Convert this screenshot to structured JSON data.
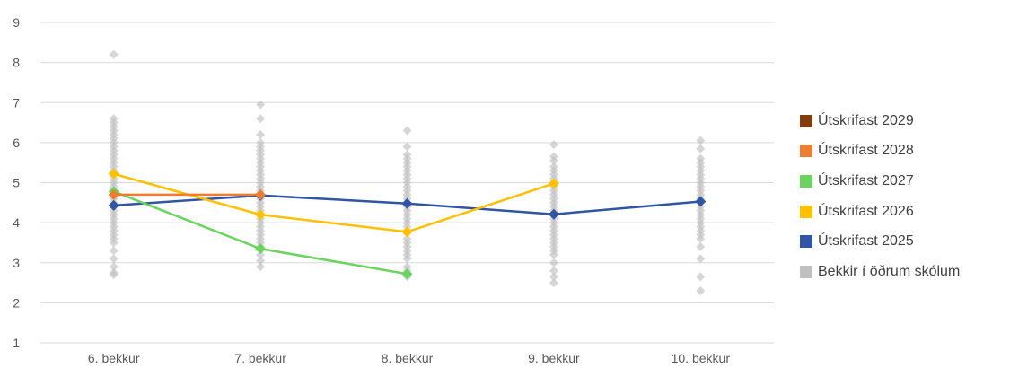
{
  "chart_data": {
    "type": "line",
    "categories": [
      "6. bekkur",
      "7. bekkur",
      "8. bekkur",
      "9. bekkur",
      "10. bekkur"
    ],
    "ylim": [
      1,
      9
    ],
    "yticks": [
      "1",
      "2",
      "3",
      "4",
      "5",
      "6",
      "7",
      "8",
      "9"
    ],
    "grid": true,
    "legend_position": "right",
    "series": [
      {
        "name": "Útskrifast 2029",
        "color": "#843c0c",
        "values": [
          null,
          null,
          null,
          null,
          null
        ]
      },
      {
        "name": "Útskrifast 2028",
        "color": "#ed7d31",
        "values": [
          4.7,
          4.7,
          null,
          null,
          null
        ]
      },
      {
        "name": "Útskrifast 2027",
        "color": "#6ad45f",
        "values": [
          4.78,
          3.35,
          2.72,
          null,
          null
        ]
      },
      {
        "name": "Útskrifast 2026",
        "color": "#ffc000",
        "values": [
          5.22,
          4.2,
          3.77,
          4.98,
          null
        ]
      },
      {
        "name": "Útskrifast 2025",
        "color": "#2f55a4",
        "values": [
          4.43,
          4.68,
          4.48,
          4.21,
          4.53
        ]
      }
    ],
    "background_series": {
      "name": "Bekkir í öðrum skólum",
      "color": "#c0c0c0",
      "points": [
        [
          0,
          8.2
        ],
        [
          0,
          6.6
        ],
        [
          0,
          6.5
        ],
        [
          0,
          6.4
        ],
        [
          0,
          6.3
        ],
        [
          0,
          6.2
        ],
        [
          0,
          6.1
        ],
        [
          0,
          6.0
        ],
        [
          0,
          5.9
        ],
        [
          0,
          5.8
        ],
        [
          0,
          5.7
        ],
        [
          0,
          5.6
        ],
        [
          0,
          5.5
        ],
        [
          0,
          5.4
        ],
        [
          0,
          5.3
        ],
        [
          0,
          5.2
        ],
        [
          0,
          5.1
        ],
        [
          0,
          5.0
        ],
        [
          0,
          4.9
        ],
        [
          0,
          4.8
        ],
        [
          0,
          4.6
        ],
        [
          0,
          4.5
        ],
        [
          0,
          4.4
        ],
        [
          0,
          4.3
        ],
        [
          0,
          4.2
        ],
        [
          0,
          4.1
        ],
        [
          0,
          4.0
        ],
        [
          0,
          3.9
        ],
        [
          0,
          3.8
        ],
        [
          0,
          3.7
        ],
        [
          0,
          3.6
        ],
        [
          0,
          3.5
        ],
        [
          0,
          3.3
        ],
        [
          0,
          3.1
        ],
        [
          0,
          2.9
        ],
        [
          0,
          2.75
        ],
        [
          0,
          2.7
        ],
        [
          1,
          6.95
        ],
        [
          1,
          6.6
        ],
        [
          1,
          6.2
        ],
        [
          1,
          6.0
        ],
        [
          1,
          5.9
        ],
        [
          1,
          5.8
        ],
        [
          1,
          5.7
        ],
        [
          1,
          5.6
        ],
        [
          1,
          5.5
        ],
        [
          1,
          5.4
        ],
        [
          1,
          5.3
        ],
        [
          1,
          5.2
        ],
        [
          1,
          5.1
        ],
        [
          1,
          5.0
        ],
        [
          1,
          4.9
        ],
        [
          1,
          4.8
        ],
        [
          1,
          4.6
        ],
        [
          1,
          4.5
        ],
        [
          1,
          4.4
        ],
        [
          1,
          4.3
        ],
        [
          1,
          4.1
        ],
        [
          1,
          4.0
        ],
        [
          1,
          3.9
        ],
        [
          1,
          3.8
        ],
        [
          1,
          3.7
        ],
        [
          1,
          3.6
        ],
        [
          1,
          3.5
        ],
        [
          1,
          3.4
        ],
        [
          1,
          3.2
        ],
        [
          1,
          3.05
        ],
        [
          1,
          2.9
        ],
        [
          2,
          6.3
        ],
        [
          2,
          5.9
        ],
        [
          2,
          5.7
        ],
        [
          2,
          5.6
        ],
        [
          2,
          5.5
        ],
        [
          2,
          5.4
        ],
        [
          2,
          5.3
        ],
        [
          2,
          5.2
        ],
        [
          2,
          5.1
        ],
        [
          2,
          5.0
        ],
        [
          2,
          4.9
        ],
        [
          2,
          4.8
        ],
        [
          2,
          4.7
        ],
        [
          2,
          4.6
        ],
        [
          2,
          4.4
        ],
        [
          2,
          4.3
        ],
        [
          2,
          4.2
        ],
        [
          2,
          4.1
        ],
        [
          2,
          4.0
        ],
        [
          2,
          3.9
        ],
        [
          2,
          3.6
        ],
        [
          2,
          3.5
        ],
        [
          2,
          3.4
        ],
        [
          2,
          3.3
        ],
        [
          2,
          3.2
        ],
        [
          2,
          3.1
        ],
        [
          2,
          2.9
        ],
        [
          2,
          2.8
        ],
        [
          2,
          2.65
        ],
        [
          3,
          5.95
        ],
        [
          3,
          5.65
        ],
        [
          3,
          5.55
        ],
        [
          3,
          5.4
        ],
        [
          3,
          5.3
        ],
        [
          3,
          5.2
        ],
        [
          3,
          5.1
        ],
        [
          3,
          4.9
        ],
        [
          3,
          4.8
        ],
        [
          3,
          4.7
        ],
        [
          3,
          4.6
        ],
        [
          3,
          4.5
        ],
        [
          3,
          4.4
        ],
        [
          3,
          4.3
        ],
        [
          3,
          4.1
        ],
        [
          3,
          4.0
        ],
        [
          3,
          3.9
        ],
        [
          3,
          3.8
        ],
        [
          3,
          3.7
        ],
        [
          3,
          3.6
        ],
        [
          3,
          3.5
        ],
        [
          3,
          3.4
        ],
        [
          3,
          3.3
        ],
        [
          3,
          3.2
        ],
        [
          3,
          3.0
        ],
        [
          3,
          2.8
        ],
        [
          3,
          2.65
        ],
        [
          3,
          2.5
        ],
        [
          4,
          6.05
        ],
        [
          4,
          5.85
        ],
        [
          4,
          5.6
        ],
        [
          4,
          5.5
        ],
        [
          4,
          5.4
        ],
        [
          4,
          5.3
        ],
        [
          4,
          5.2
        ],
        [
          4,
          5.1
        ],
        [
          4,
          5.0
        ],
        [
          4,
          4.9
        ],
        [
          4,
          4.8
        ],
        [
          4,
          4.7
        ],
        [
          4,
          4.6
        ],
        [
          4,
          4.4
        ],
        [
          4,
          4.3
        ],
        [
          4,
          4.2
        ],
        [
          4,
          4.1
        ],
        [
          4,
          4.0
        ],
        [
          4,
          3.9
        ],
        [
          4,
          3.8
        ],
        [
          4,
          3.7
        ],
        [
          4,
          3.6
        ],
        [
          4,
          3.4
        ],
        [
          4,
          3.1
        ],
        [
          4,
          2.65
        ],
        [
          4,
          2.3
        ]
      ]
    },
    "legend": [
      "Útskrifast 2029",
      "Útskrifast 2028",
      "Útskrifast 2027",
      "Útskrifast 2026",
      "Útskrifast 2025",
      "Bekkir í öðrum skólum"
    ],
    "title": "",
    "xlabel": "",
    "ylabel": ""
  }
}
